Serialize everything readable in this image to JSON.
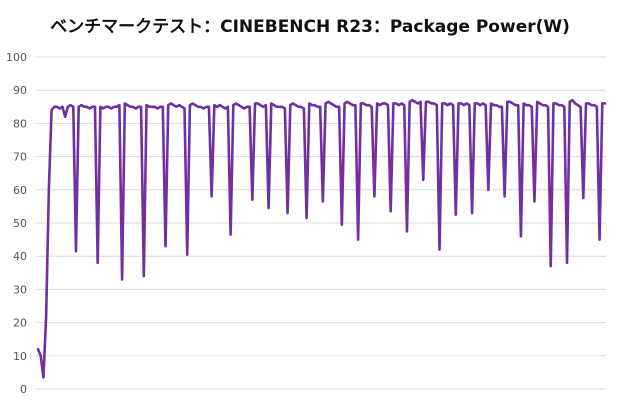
{
  "chart_data": {
    "type": "line",
    "title": "ベンチマークテスト：CINEBENCH R23：Package Power(W)",
    "xlabel": "",
    "ylabel": "",
    "ylim": [
      0,
      100
    ],
    "yticks": [
      0,
      10,
      20,
      30,
      40,
      50,
      60,
      70,
      80,
      90,
      100
    ],
    "grid": true,
    "legend": "none",
    "series": [
      {
        "color": "#7030a0",
        "values": [
          12,
          10,
          3.5,
          22,
          60,
          84,
          85,
          85,
          84.5,
          85,
          82,
          85,
          85.5,
          85,
          41.5,
          85,
          85.5,
          85,
          85,
          84.5,
          85,
          85,
          38,
          85,
          84.5,
          85,
          85,
          84.5,
          85,
          85,
          85.5,
          33,
          86,
          85.5,
          85,
          85,
          84.5,
          85,
          85,
          34,
          85.5,
          85,
          85,
          85,
          84.5,
          85,
          85,
          43,
          85.5,
          86,
          85.5,
          85,
          85.5,
          85,
          84.5,
          40.5,
          85.5,
          86,
          85.5,
          85,
          85,
          84.5,
          85,
          85,
          58,
          85.5,
          85,
          85.5,
          85,
          84.5,
          85,
          46.5,
          85.5,
          86,
          85.5,
          85,
          84.5,
          85,
          85,
          57,
          86,
          86,
          85.5,
          85,
          85.5,
          54.5,
          86,
          85.5,
          85,
          85,
          85,
          84.5,
          53,
          85.5,
          86,
          85.5,
          85,
          85,
          84.5,
          51.5,
          86,
          85.5,
          85.5,
          85,
          85,
          56.5,
          86,
          86.5,
          86,
          85.5,
          85,
          85,
          49.5,
          86,
          86.5,
          86,
          85.5,
          85.5,
          45,
          86,
          86,
          85.5,
          85.5,
          85,
          58,
          86,
          85.5,
          86,
          86,
          85.5,
          53.5,
          86,
          86,
          85.5,
          86,
          85.5,
          47.5,
          86.5,
          87,
          86.5,
          86,
          86.5,
          63,
          86.5,
          86.5,
          86,
          86,
          85.5,
          42,
          86,
          86,
          85.5,
          86,
          85.5,
          52.5,
          86,
          86,
          85.5,
          86,
          85.5,
          53,
          86,
          86,
          85.5,
          86,
          85.5,
          60,
          86,
          85.5,
          85.5,
          85,
          85,
          58,
          86.5,
          86.5,
          86,
          85.5,
          85.5,
          46,
          86,
          85.5,
          85.5,
          85,
          56.5,
          86.5,
          86,
          85.5,
          85.5,
          85,
          37,
          86,
          86,
          85.5,
          85.5,
          85,
          38,
          86.5,
          87,
          86,
          85.5,
          85,
          57.5,
          86,
          86,
          85.5,
          85.5,
          85,
          45,
          86,
          86
        ]
      }
    ]
  }
}
